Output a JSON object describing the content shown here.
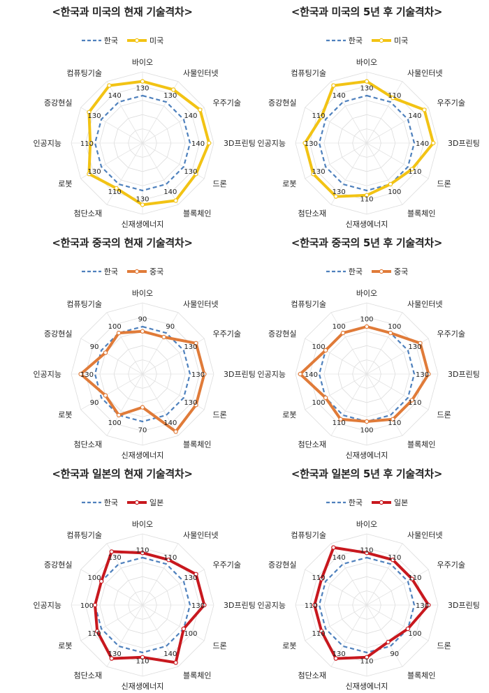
{
  "chart_data": [
    {
      "type": "radar",
      "title": "<한국과 미국의 현재 기술격차>",
      "categories": [
        "바이오",
        "사물인터넷",
        "우주기술",
        "3D프린팅",
        "드론",
        "블록체인",
        "신재생에너지",
        "첨단소재",
        "로봇",
        "인공지능",
        "증강현실",
        "컴퓨팅기술"
      ],
      "tick_labels": [
        "130",
        "130",
        "140",
        "140",
        "130",
        "140",
        "130",
        "110",
        "130",
        "110",
        "130",
        "140"
      ],
      "series": [
        {
          "name": "한국",
          "values": [
            100,
            100,
            100,
            100,
            100,
            100,
            100,
            100,
            100,
            100,
            100,
            100
          ],
          "color": "#4f81bd",
          "style": "dashed"
        },
        {
          "name": "미국",
          "values": [
            130,
            130,
            140,
            140,
            130,
            140,
            130,
            110,
            130,
            110,
            130,
            140
          ],
          "color": "#f2c314",
          "style": "solid"
        }
      ]
    },
    {
      "type": "radar",
      "title": "<한국과 미국의 5년 후 기술격차>",
      "categories": [
        "바이오",
        "사물인터넷",
        "우주기술",
        "3D프린팅",
        "드론",
        "블록체인",
        "신재생에너지",
        "첨단소재",
        "로봇",
        "인공지능",
        "증강현실",
        "컴퓨팅기술"
      ],
      "tick_labels": [
        "130",
        "110",
        "140",
        "140",
        "110",
        "100",
        "110",
        "130",
        "130",
        "130",
        "110",
        "140"
      ],
      "series": [
        {
          "name": "한국",
          "values": [
            100,
            100,
            100,
            100,
            100,
            100,
            100,
            100,
            100,
            100,
            100,
            100
          ],
          "color": "#4f81bd",
          "style": "dashed"
        },
        {
          "name": "미국",
          "values": [
            130,
            110,
            140,
            140,
            110,
            100,
            110,
            130,
            130,
            130,
            110,
            140
          ],
          "color": "#f2c314",
          "style": "solid"
        }
      ]
    },
    {
      "type": "radar",
      "title": "<한국과 중국의 현재 기술격차>",
      "categories": [
        "바이오",
        "사물인터넷",
        "우주기술",
        "3D프린팅",
        "드론",
        "블록체인",
        "신재생에너지",
        "첨단소재",
        "로봇",
        "인공지능",
        "증강현실",
        "컴퓨팅기술"
      ],
      "tick_labels": [
        "90",
        "90",
        "130",
        "130",
        "130",
        "140",
        "70",
        "100",
        "90",
        "130",
        "90",
        "100"
      ],
      "series": [
        {
          "name": "한국",
          "values": [
            100,
            100,
            100,
            100,
            100,
            100,
            100,
            100,
            100,
            100,
            100,
            100
          ],
          "color": "#4f81bd",
          "style": "dashed"
        },
        {
          "name": "중국",
          "values": [
            90,
            90,
            130,
            130,
            130,
            140,
            70,
            100,
            90,
            130,
            90,
            100
          ],
          "color": "#e07b39",
          "style": "solid"
        }
      ]
    },
    {
      "type": "radar",
      "title": "<한국과 중국의 5년 후 기술격차>",
      "categories": [
        "바이오",
        "사물인터넷",
        "우주기술",
        "3D프린팅",
        "드론",
        "블록체인",
        "신재생에너지",
        "첨단소재",
        "로봇",
        "인공지능",
        "증강현실",
        "컴퓨팅기술"
      ],
      "tick_labels": [
        "100",
        "100",
        "130",
        "130",
        "110",
        "110",
        "100",
        "110",
        "100",
        "140",
        "100",
        "100"
      ],
      "series": [
        {
          "name": "한국",
          "values": [
            100,
            100,
            100,
            100,
            100,
            100,
            100,
            100,
            100,
            100,
            100,
            100
          ],
          "color": "#4f81bd",
          "style": "dashed"
        },
        {
          "name": "중국",
          "values": [
            100,
            100,
            130,
            130,
            110,
            110,
            100,
            110,
            100,
            140,
            100,
            100
          ],
          "color": "#e07b39",
          "style": "solid"
        }
      ]
    },
    {
      "type": "radar",
      "title": "<한국과 일본의 현재 기술격차>",
      "categories": [
        "바이오",
        "사물인터넷",
        "우주기술",
        "3D프린팅",
        "드론",
        "블록체인",
        "신재생에너지",
        "첨단소재",
        "로봇",
        "인공지능",
        "증강현실",
        "컴퓨팅기술"
      ],
      "tick_labels": [
        "110",
        "110",
        "130",
        "130",
        "100",
        "140",
        "110",
        "130",
        "110",
        "100",
        "100",
        "130"
      ],
      "series": [
        {
          "name": "한국",
          "values": [
            100,
            100,
            100,
            100,
            100,
            100,
            100,
            100,
            100,
            100,
            100,
            100
          ],
          "color": "#4f81bd",
          "style": "dashed"
        },
        {
          "name": "일본",
          "values": [
            110,
            110,
            130,
            130,
            100,
            140,
            110,
            130,
            110,
            100,
            100,
            130
          ],
          "color": "#c8181e",
          "style": "solid"
        }
      ]
    },
    {
      "type": "radar",
      "title": "<한국과 일본의 5년 후 기술격차>",
      "categories": [
        "바이오",
        "사물인터넷",
        "우주기술",
        "3D프린팅",
        "드론",
        "블록체인",
        "신재생에너지",
        "첨단소재",
        "로봇",
        "인공지능",
        "증강현실",
        "컴퓨팅기술"
      ],
      "tick_labels": [
        "110",
        "110",
        "110",
        "130",
        "100",
        "90",
        "110",
        "130",
        "110",
        "110",
        "110",
        "140"
      ],
      "series": [
        {
          "name": "한국",
          "values": [
            100,
            100,
            100,
            100,
            100,
            100,
            100,
            100,
            100,
            100,
            100,
            100
          ],
          "color": "#4f81bd",
          "style": "dashed"
        },
        {
          "name": "일본",
          "values": [
            110,
            110,
            110,
            130,
            100,
            90,
            110,
            130,
            110,
            110,
            110,
            140
          ],
          "color": "#c8181e",
          "style": "solid"
        }
      ]
    }
  ]
}
